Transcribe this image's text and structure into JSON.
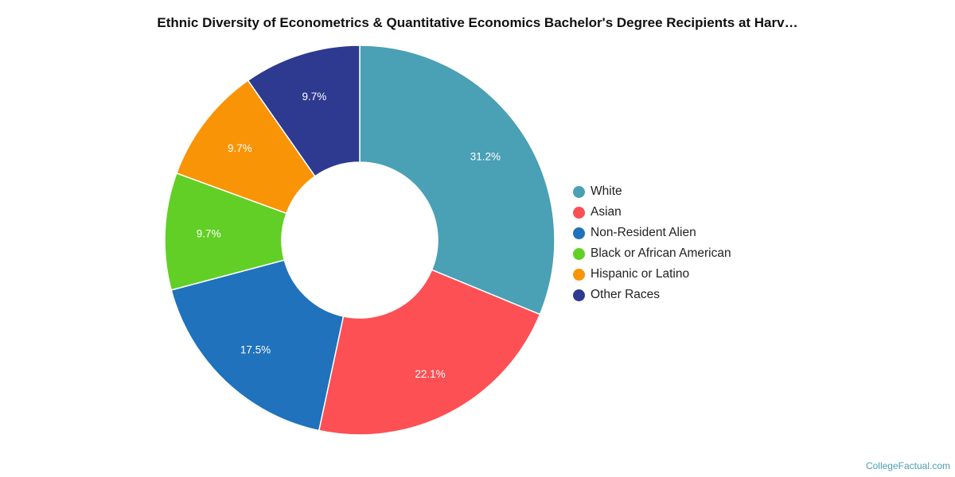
{
  "chart_data": {
    "type": "pie",
    "title": "Ethnic Diversity of Econometrics & Quantitative Economics Bachelor's Degree Recipients at Harv…",
    "donut": true,
    "legend_position": "right",
    "series": [
      {
        "name": "White",
        "value": 31.2,
        "label": "31.2%",
        "color": "#4aa0b4"
      },
      {
        "name": "Asian",
        "value": 22.1,
        "label": "22.1%",
        "color": "#fd5054"
      },
      {
        "name": "Non-Resident Alien",
        "value": 17.5,
        "label": "17.5%",
        "color": "#1f72bb"
      },
      {
        "name": "Black or African American",
        "value": 9.7,
        "label": "9.7%",
        "color": "#62cf26"
      },
      {
        "name": "Hispanic or Latino",
        "value": 9.7,
        "label": "9.7%",
        "color": "#f99406"
      },
      {
        "name": "Other Races",
        "value": 9.7,
        "label": "9.7%",
        "color": "#2d3a8f"
      }
    ]
  },
  "credit": "CollegeFactual.com"
}
